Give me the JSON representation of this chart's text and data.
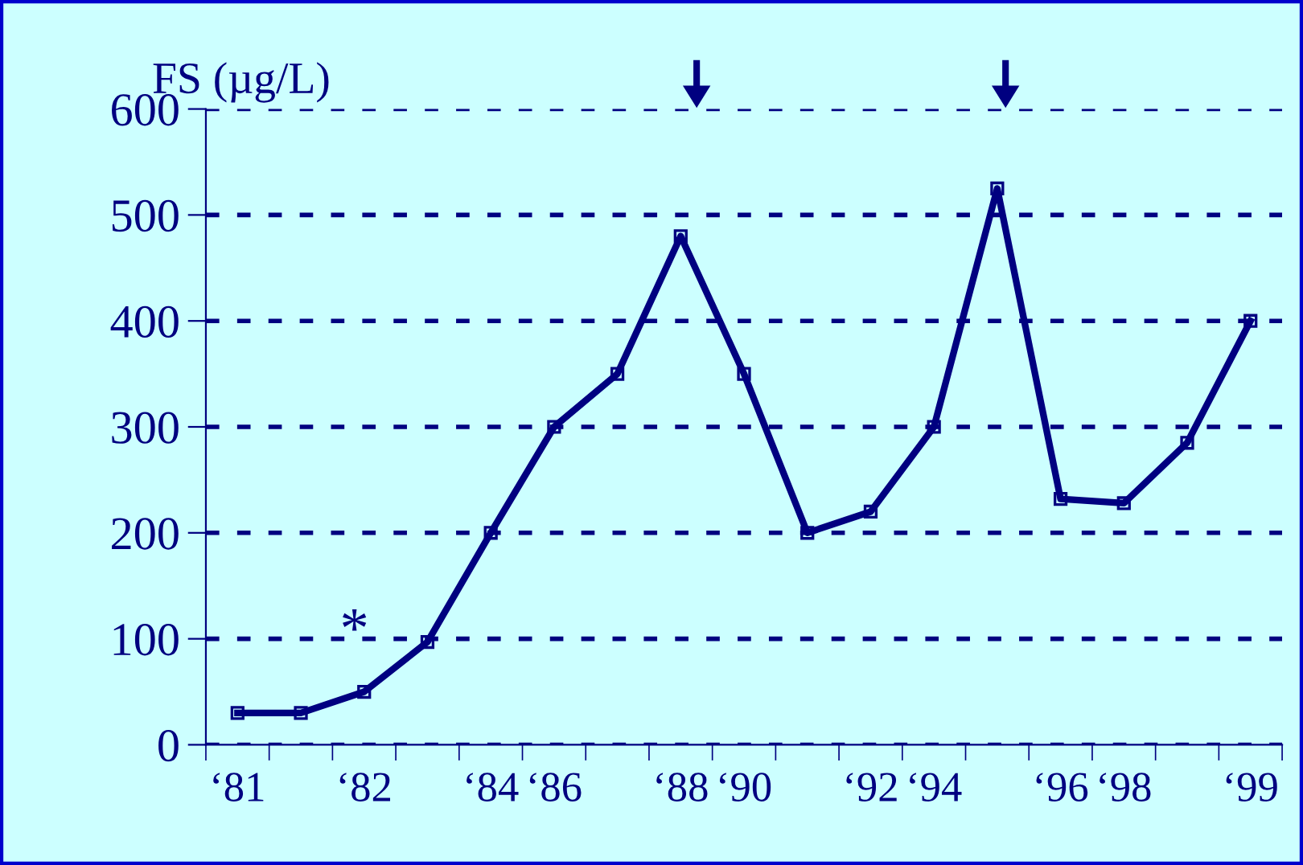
{
  "chart_data": {
    "type": "line",
    "ylabel": "FS (µg/L)",
    "categories": [
      "‘81",
      null,
      "‘82",
      null,
      "‘84",
      "‘86",
      null,
      "‘88",
      "‘90",
      null,
      "‘92",
      "‘94",
      null,
      "‘96",
      "‘98",
      null,
      "‘99"
    ],
    "series": [
      {
        "color": "#000080",
        "values": [
          30,
          30,
          50,
          97,
          200,
          300,
          350,
          480,
          350,
          200,
          220,
          300,
          525,
          232,
          228,
          285,
          400
        ]
      }
    ],
    "ylim": [
      0,
      600
    ],
    "yticks": [
      0,
      100,
      200,
      300,
      400,
      500,
      600
    ],
    "grid": "y",
    "marker": "square",
    "line_style": "solid",
    "annotations": [
      "*"
    ]
  }
}
